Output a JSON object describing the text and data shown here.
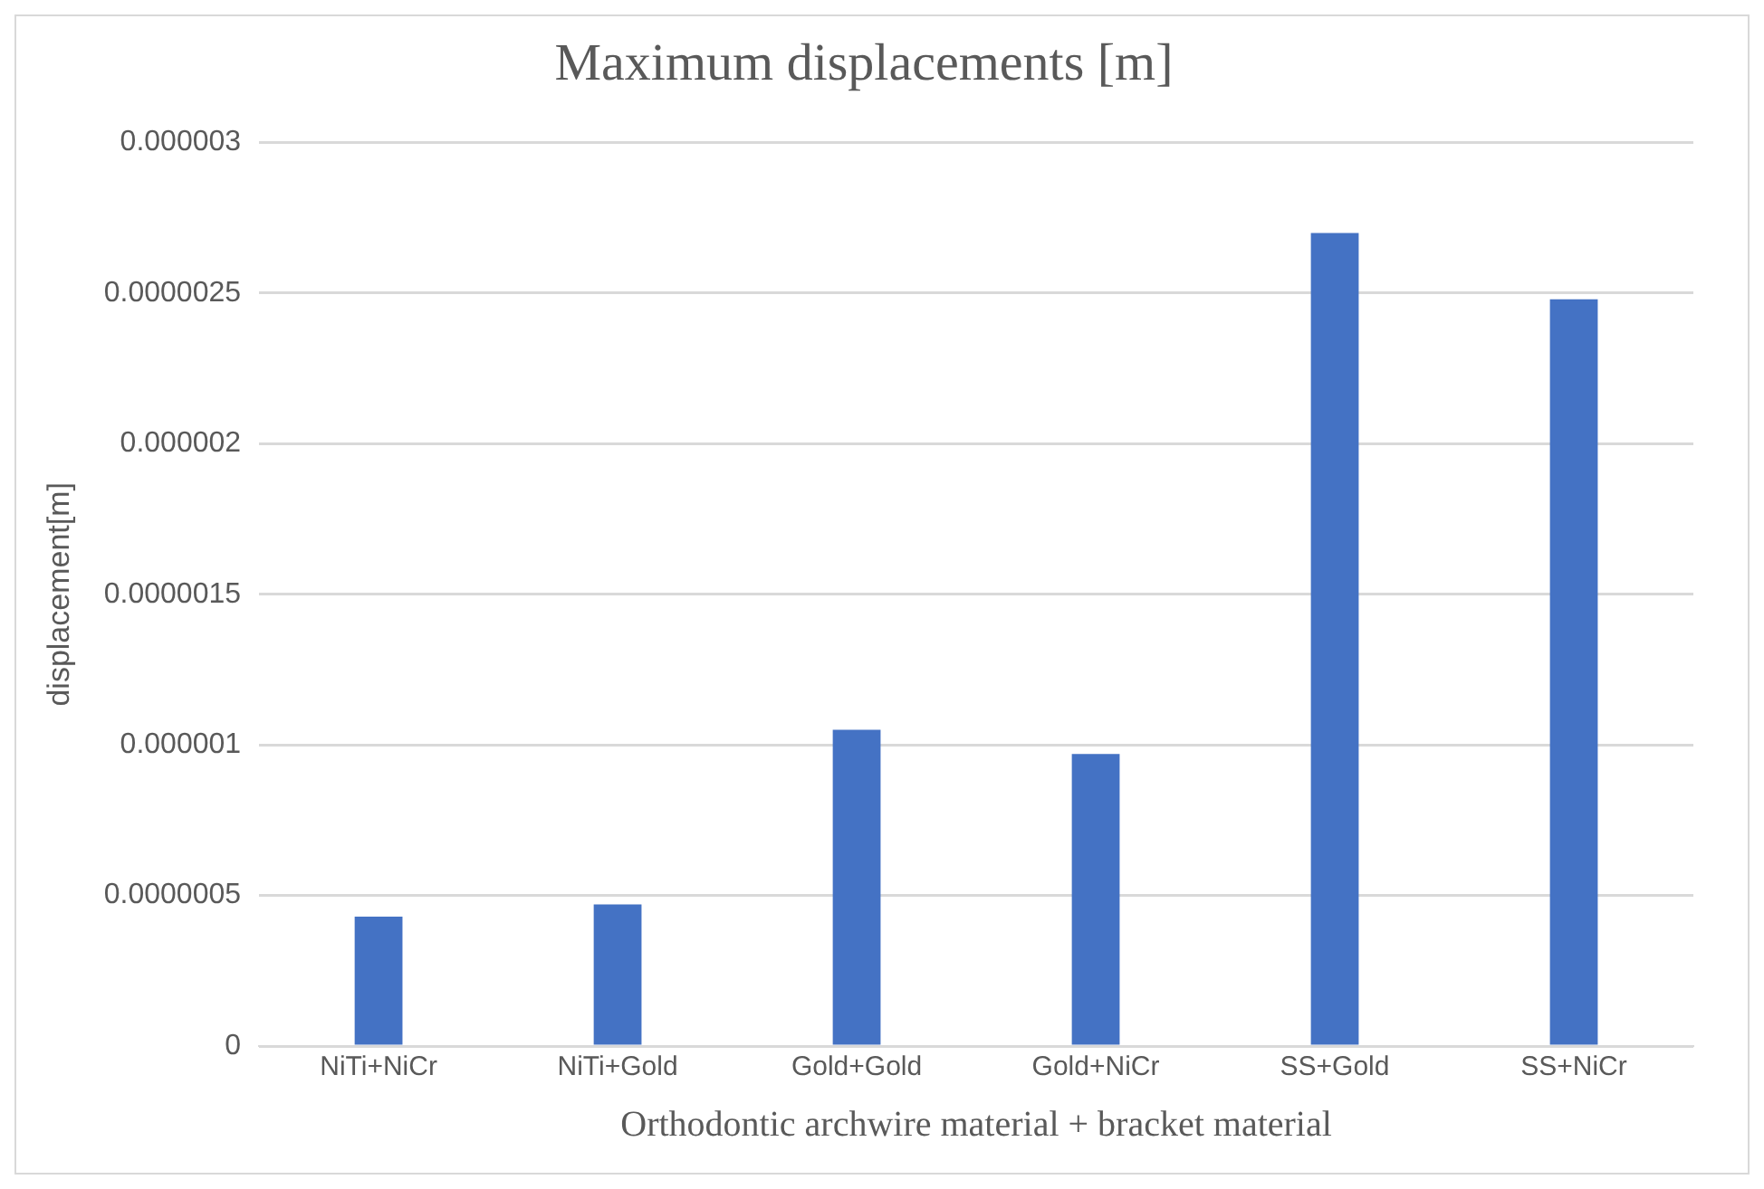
{
  "chart_data": {
    "type": "bar",
    "title": "Maximum displacements [m]",
    "xlabel": "Orthodontic archwire material + bracket material",
    "ylabel": "displacement[m]",
    "categories": [
      "NiTi+NiCr",
      "NiTi+Gold",
      "Gold+Gold",
      "Gold+NiCr",
      "SS+Gold",
      "SS+NiCr"
    ],
    "values": [
      4.3e-07,
      4.7e-07,
      1.05e-06,
      9.7e-07,
      2.7e-06,
      2.48e-06
    ],
    "color": "#4472c4",
    "ylim": [
      0,
      3e-06
    ],
    "yticks": [
      {
        "value": 0,
        "label": "0"
      },
      {
        "value": 5e-07,
        "label": "0.0000005"
      },
      {
        "value": 1e-06,
        "label": "0.000001"
      },
      {
        "value": 1.5e-06,
        "label": "0.0000015"
      },
      {
        "value": 2e-06,
        "label": "0.000002"
      },
      {
        "value": 2.5e-06,
        "label": "0.0000025"
      },
      {
        "value": 3e-06,
        "label": "0.000003"
      }
    ],
    "grid": "y"
  }
}
